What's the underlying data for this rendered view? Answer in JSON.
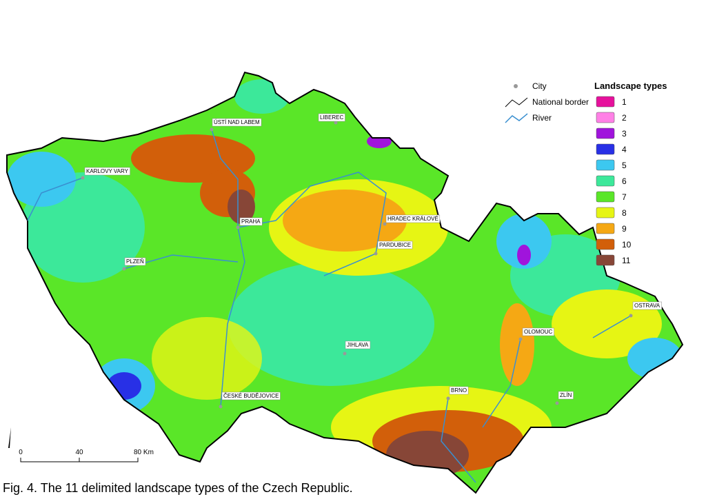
{
  "legend": {
    "title": "Landscape types",
    "items": [
      {
        "label": "1",
        "color": "#e6119c"
      },
      {
        "label": "2",
        "color": "#ff80e6"
      },
      {
        "label": "3",
        "color": "#a014dc"
      },
      {
        "label": "4",
        "color": "#2830e6"
      },
      {
        "label": "5",
        "color": "#3cc8f0"
      },
      {
        "label": "6",
        "color": "#3ce89a"
      },
      {
        "label": "7",
        "color": "#5ae628"
      },
      {
        "label": "8",
        "color": "#e6f514"
      },
      {
        "label": "9",
        "color": "#f5a814"
      },
      {
        "label": "10",
        "color": "#d25f0a"
      },
      {
        "label": "11",
        "color": "#874637"
      }
    ]
  },
  "symbols": [
    "City",
    "National border",
    "River"
  ],
  "cities": [
    "ÚSTÍ NAD LABEM",
    "LIBEREC",
    "KARLOVY VARY",
    "PRAHA",
    "HRADEC KRÁLOVÉ",
    "PARDUBICE",
    "PLZEŇ",
    "OSTRAVA",
    "OLOMOUC",
    "JIHLAVA",
    "BRNO",
    "ZLÍN",
    "ČESKÉ BUDĚJOVICE"
  ],
  "scale_bar": {
    "labels": [
      "0",
      "40",
      "80 Km"
    ]
  },
  "caption": "Fig. 4. The 11 delimited landscape types of the Czech Republic."
}
